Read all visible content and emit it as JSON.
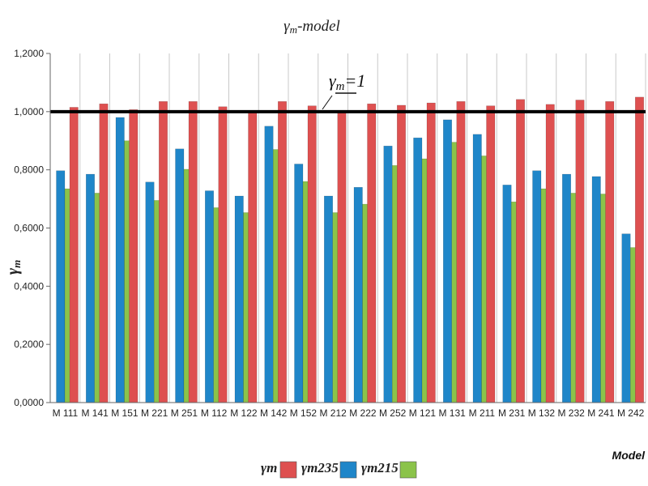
{
  "chart_data": {
    "type": "bar",
    "title": {
      "main": "γ",
      "sub": "m",
      "suffix": "-model"
    },
    "xlabel": "Model",
    "ylabel": {
      "main": "γ",
      "sub": "m"
    },
    "ylim": [
      0,
      1.2
    ],
    "yticks": [
      0,
      0.2,
      0.4,
      0.6,
      0.8,
      1.0,
      1.2
    ],
    "ytick_labels": [
      "0,0000",
      "0,2000",
      "0,4000",
      "0,6000",
      "0,8000",
      "1,0000",
      "1,2000"
    ],
    "grid": "vertical",
    "categories": [
      "M 111",
      "M 141",
      "M 151",
      "M 221",
      "M 251",
      "M 112",
      "M 122",
      "M 142",
      "M 152",
      "M 212",
      "M 222",
      "M 252",
      "M 121",
      "M 131",
      "M 211",
      "M 231",
      "M 132",
      "M 232",
      "M 241",
      "M 242"
    ],
    "series": [
      {
        "name": "γm235",
        "sub": "m235",
        "color": "#1f86c9",
        "values": [
          0.797,
          0.785,
          0.98,
          0.758,
          0.872,
          0.728,
          0.71,
          0.95,
          0.82,
          0.71,
          0.74,
          0.882,
          0.91,
          0.972,
          0.922,
          0.748,
          0.797,
          0.785,
          0.777,
          0.58
        ]
      },
      {
        "name": "γm215",
        "sub": "m215",
        "color": "#8bc34a",
        "values": [
          0.735,
          0.72,
          0.9,
          0.695,
          0.802,
          0.67,
          0.653,
          0.87,
          0.76,
          0.653,
          0.682,
          0.815,
          0.838,
          0.895,
          0.848,
          0.69,
          0.735,
          0.72,
          0.717,
          0.533
        ]
      },
      {
        "name": "γm",
        "sub": "m",
        "color": "#de5050",
        "values": [
          1.015,
          1.027,
          1.007,
          1.035,
          1.035,
          1.017,
          1.0,
          1.035,
          1.02,
          1.0,
          1.027,
          1.022,
          1.03,
          1.035,
          1.02,
          1.042,
          1.025,
          1.04,
          1.035,
          1.05
        ]
      }
    ],
    "legend": {
      "position": "bottom",
      "order": [
        "γm",
        "γm235",
        "γm215"
      ]
    },
    "reference_line": {
      "value": 1.0,
      "label": "γm=1",
      "label_main": "γ",
      "label_sub": "m",
      "label_suffix": "=1"
    }
  }
}
